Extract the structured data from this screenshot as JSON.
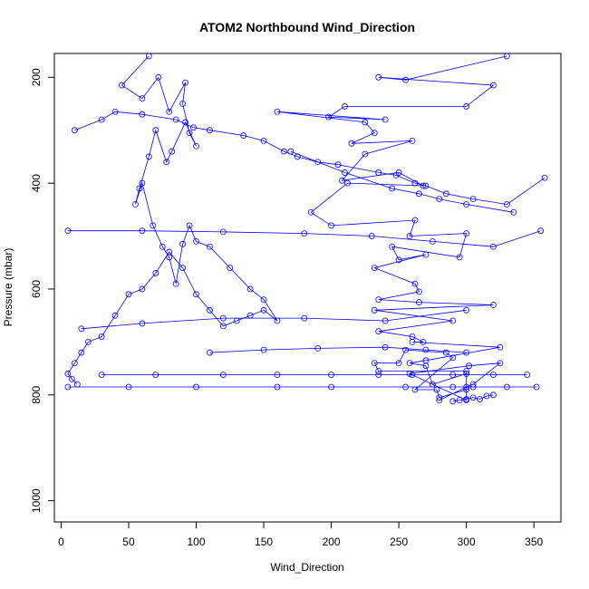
{
  "chart_data": {
    "type": "line",
    "title": "ATOM2 Northbound Wind_Direction",
    "xlabel": "Wind_Direction",
    "ylabel": "Pressure (mbar)",
    "xlim": [
      -5,
      370
    ],
    "ylim": [
      1040,
      155
    ],
    "y_inverted": true,
    "x_ticks": [
      "0",
      "50",
      "100",
      "150",
      "200",
      "250",
      "300",
      "350"
    ],
    "y_ticks": [
      "200",
      "400",
      "600",
      "800",
      "1000"
    ],
    "series_color": "#0000ff",
    "markers": "open-circle",
    "grid": false,
    "legend": "none",
    "series": [
      {
        "x": [
          330,
          255,
          235,
          320,
          300,
          210,
          198,
          240,
          160,
          225,
          232,
          215,
          260,
          225,
          208,
          250,
          268,
          212,
          185,
          200,
          262,
          258,
          300,
          295,
          245,
          250,
          270,
          232,
          262,
          265,
          235,
          265,
          320,
          232,
          290,
          235,
          260,
          268,
          260,
          325,
          270,
          258,
          270,
          275,
          300,
          300,
          280,
          278,
          262,
          290,
          285,
          255,
          250,
          232,
          235,
          300,
          300,
          258,
          302,
          325,
          305,
          300,
          280
        ],
        "y": [
          160,
          205,
          200,
          215,
          255,
          255,
          275,
          280,
          265,
          285,
          305,
          325,
          320,
          345,
          395,
          380,
          405,
          400,
          455,
          480,
          470,
          500,
          495,
          540,
          520,
          545,
          535,
          560,
          590,
          605,
          620,
          625,
          630,
          640,
          660,
          680,
          690,
          700,
          700,
          710,
          735,
          740,
          745,
          780,
          760,
          790,
          805,
          790,
          790,
          730,
          720,
          715,
          740,
          740,
          755,
          755,
          810,
          760,
          745,
          740,
          780,
          785,
          810
        ]
      },
      {
        "x": [
          65,
          45,
          60,
          72,
          80,
          92,
          90,
          95,
          100,
          92,
          82,
          78,
          70,
          65,
          58,
          55,
          60,
          68,
          75,
          80,
          85,
          90,
          95,
          100,
          110,
          125,
          140,
          150,
          160,
          150,
          140,
          130,
          120,
          110,
          100,
          90,
          80,
          70,
          60,
          50,
          40,
          30,
          20,
          15,
          10,
          5,
          8,
          12
        ],
        "y": [
          160,
          215,
          240,
          200,
          265,
          210,
          250,
          305,
          330,
          285,
          340,
          360,
          300,
          350,
          410,
          440,
          400,
          480,
          520,
          540,
          590,
          515,
          480,
          510,
          520,
          560,
          600,
          620,
          660,
          640,
          650,
          660,
          670,
          640,
          610,
          560,
          530,
          570,
          600,
          610,
          650,
          690,
          700,
          720,
          740,
          760,
          770,
          780
        ]
      },
      {
        "x": [
          10,
          30,
          40,
          60,
          85,
          98,
          110,
          135,
          150,
          165,
          175,
          190,
          205,
          235,
          248,
          262,
          270,
          285,
          305,
          330,
          358
        ],
        "y": [
          300,
          280,
          265,
          270,
          280,
          295,
          300,
          310,
          320,
          340,
          350,
          360,
          365,
          380,
          385,
          400,
          405,
          420,
          430,
          440,
          390
        ]
      },
      {
        "x": [
          5,
          60,
          120,
          180,
          230,
          275,
          320,
          355
        ],
        "y": [
          490,
          490,
          492,
          495,
          500,
          510,
          520,
          490
        ]
      },
      {
        "x": [
          5,
          50,
          100,
          160,
          200,
          255,
          290,
          305,
          330,
          352
        ],
        "y": [
          785,
          785,
          785,
          785,
          785,
          785,
          785,
          785,
          785,
          785
        ]
      },
      {
        "x": [
          30,
          70,
          120,
          160,
          200,
          235,
          260,
          290,
          320,
          345
        ],
        "y": [
          762,
          762,
          762,
          762,
          762,
          762,
          762,
          762,
          762,
          762
        ]
      },
      {
        "x": [
          290,
          295,
          300,
          305,
          310,
          315,
          320
        ],
        "y": [
          812,
          810,
          808,
          805,
          808,
          802,
          800
        ]
      },
      {
        "x": [
          15,
          60,
          120,
          180,
          240,
          300
        ],
        "y": [
          675,
          665,
          655,
          655,
          660,
          640
        ]
      },
      {
        "x": [
          110,
          150,
          190,
          240,
          270,
          300
        ],
        "y": [
          720,
          715,
          712,
          710,
          715,
          720
        ]
      },
      {
        "x": [
          170,
          210,
          245,
          265,
          280,
          300,
          335
        ],
        "y": [
          340,
          380,
          410,
          420,
          430,
          440,
          455
        ]
      }
    ]
  }
}
